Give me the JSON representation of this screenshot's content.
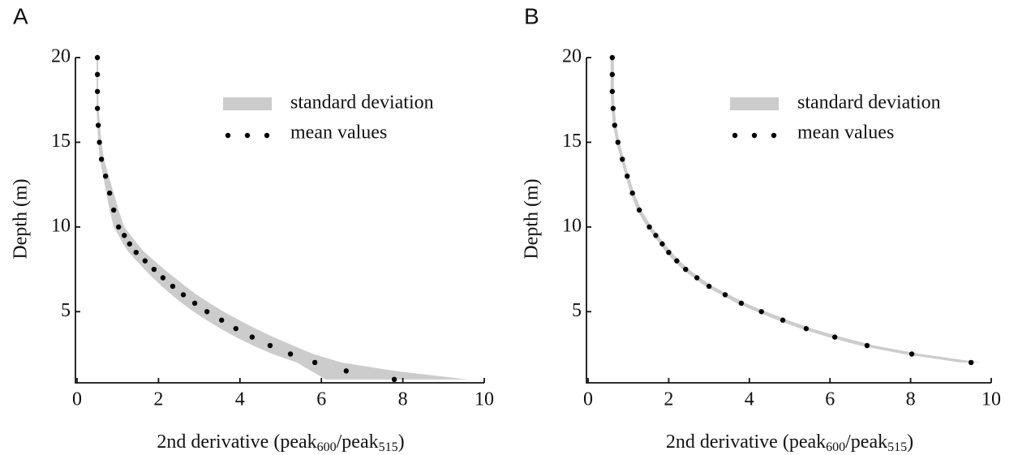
{
  "chart_data": [
    {
      "type": "scatter",
      "panel": "A",
      "xlabel": [
        "2nd derivative (peak",
        "600",
        "/peak",
        "515",
        ")"
      ],
      "ylabel": "Depth (m)",
      "y": [
        20,
        19,
        18,
        17,
        16,
        15,
        14,
        13,
        12,
        11,
        10,
        9.5,
        9,
        8.5,
        8,
        7.5,
        7,
        6.5,
        6,
        5.5,
        5,
        4.5,
        4,
        3.5,
        3,
        2.5,
        2,
        1.5,
        1
      ],
      "series": [
        {
          "name": "standard deviation",
          "color": "#cccccc",
          "lower": [
            0.48,
            0.48,
            0.48,
            0.48,
            0.5,
            0.52,
            0.56,
            0.64,
            0.72,
            0.8,
            0.9,
            1.02,
            1.13,
            1.27,
            1.46,
            1.66,
            1.86,
            2.08,
            2.32,
            2.58,
            2.86,
            3.18,
            3.52,
            3.9,
            4.32,
            4.8,
            5.4,
            5.75,
            6.1
          ],
          "upper": [
            0.52,
            0.52,
            0.52,
            0.53,
            0.56,
            0.6,
            0.66,
            0.78,
            0.9,
            1.02,
            1.16,
            1.32,
            1.48,
            1.66,
            1.9,
            2.14,
            2.4,
            2.66,
            2.94,
            3.26,
            3.6,
            3.98,
            4.38,
            4.82,
            5.3,
            5.8,
            6.5,
            7.8,
            9.6
          ]
        },
        {
          "name": "mean values",
          "color": "#000000",
          "values": [
            0.5,
            0.5,
            0.5,
            0.5,
            0.52,
            0.55,
            0.6,
            0.7,
            0.8,
            0.9,
            1.02,
            1.16,
            1.29,
            1.45,
            1.67,
            1.89,
            2.11,
            2.35,
            2.61,
            2.89,
            3.19,
            3.55,
            3.9,
            4.3,
            4.74,
            5.24,
            5.84,
            6.61,
            7.79
          ]
        }
      ],
      "xlim": [
        0,
        10
      ],
      "ylim": [
        0.8,
        20
      ],
      "xticks": [
        0,
        2,
        4,
        6,
        8,
        10
      ],
      "yticks": [
        5,
        10,
        15,
        20
      ],
      "legend": "upper right"
    },
    {
      "type": "scatter",
      "panel": "B",
      "xlabel": [
        "2nd derivative (peak",
        "600",
        "/peak",
        "515",
        ")"
      ],
      "ylabel": "Depth (m)",
      "y": [
        20,
        19,
        18,
        17,
        16,
        15,
        14,
        13,
        12,
        11,
        10,
        9.5,
        9,
        8.5,
        8,
        7.5,
        7,
        6.5,
        6,
        5.5,
        5,
        4.5,
        4,
        3.5,
        3,
        2.5,
        2
      ],
      "series": [
        {
          "name": "standard deviation",
          "color": "#cccccc",
          "lower": [
            0.56,
            0.56,
            0.56,
            0.58,
            0.62,
            0.7,
            0.81,
            0.93,
            1.05,
            1.22,
            1.46,
            1.62,
            1.78,
            1.93,
            2.13,
            2.34,
            2.62,
            2.91,
            3.3,
            3.69,
            4.18,
            4.7,
            5.27,
            5.96,
            6.74,
            7.82,
            9.25
          ],
          "upper": [
            0.64,
            0.64,
            0.64,
            0.66,
            0.7,
            0.78,
            0.89,
            1.01,
            1.15,
            1.32,
            1.58,
            1.74,
            1.9,
            2.07,
            2.27,
            2.5,
            2.78,
            3.09,
            3.5,
            3.91,
            4.42,
            4.96,
            5.55,
            6.28,
            7.1,
            8.24,
            9.75
          ]
        },
        {
          "name": "mean values",
          "color": "#000000",
          "values": [
            0.6,
            0.6,
            0.6,
            0.62,
            0.66,
            0.74,
            0.85,
            0.97,
            1.1,
            1.27,
            1.52,
            1.68,
            1.84,
            2.0,
            2.2,
            2.42,
            2.7,
            3.0,
            3.4,
            3.8,
            4.3,
            4.83,
            5.41,
            6.12,
            6.92,
            8.03,
            9.5
          ]
        }
      ],
      "xlim": [
        0,
        10
      ],
      "ylim": [
        0.8,
        20
      ],
      "xticks": [
        0,
        2,
        4,
        6,
        8,
        10
      ],
      "yticks": [
        5,
        10,
        15,
        20
      ],
      "legend": "upper right"
    }
  ]
}
